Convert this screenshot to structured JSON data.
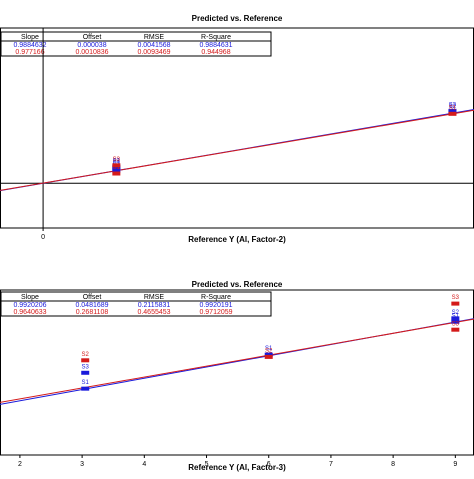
{
  "chart_data": [
    {
      "type": "scatter",
      "title": "Predicted vs. Reference",
      "xlabel": "Reference Y (Al, Factor-2)",
      "table": {
        "columns": [
          "Slope",
          "Offset",
          "RMSE",
          "R-Square"
        ],
        "rows": [
          {
            "color": "#1a1adb",
            "values": [
              0.9884632,
              3.8e-05,
              0.0041568,
              0.9884631
            ]
          },
          {
            "color": "#d41a1a",
            "values": [
              0.977166,
              0.0010836,
              0.0093469,
              0.944968
            ]
          }
        ]
      },
      "xlim": [
        -0.1,
        1.0
      ],
      "ylim": [
        -0.6,
        2.08
      ],
      "xticks": [
        0
      ],
      "origin_lines": true,
      "series": [
        {
          "color": "#1a1adb",
          "x": [
            0.17,
            0.17,
            0.17,
            0.95,
            0.95
          ],
          "values": [
            0.2,
            0.17,
            0.22,
            0.95,
            0.97
          ],
          "labels": [
            "S1",
            "S2",
            "S3",
            "S2",
            "S3"
          ]
        },
        {
          "color": "#d41a1a",
          "x": [
            0.17,
            0.17,
            0.95
          ],
          "values": [
            0.13,
            0.24,
            0.93
          ],
          "labels": [
            "S1",
            "S3",
            "S1"
          ]
        }
      ]
    },
    {
      "type": "scatter",
      "title": "Predicted vs. Reference",
      "xlabel": "Reference Y (Al, Factor-3)",
      "table": {
        "columns": [
          "Slope",
          "Offset",
          "RMSE",
          "R-Square"
        ],
        "rows": [
          {
            "color": "#1a1adb",
            "values": [
              0.9920206,
              0.0481689,
              0.2115831,
              0.9920191
            ]
          },
          {
            "color": "#d41a1a",
            "values": [
              0.9640633,
              0.2681108,
              0.4655453,
              0.9712059
            ]
          }
        ]
      },
      "xlim": [
        1.68,
        9.3
      ],
      "ylim": [
        -2.75,
        11.8
      ],
      "xticks": [
        2,
        3,
        4,
        5,
        6,
        7,
        8,
        9
      ],
      "origin_lines": false,
      "series": [
        {
          "color": "#1a1adb",
          "x": [
            3.05,
            3.05,
            6.0,
            9.0,
            9.0
          ],
          "values": [
            3.1,
            4.5,
            6.1,
            9.3,
            9.0
          ],
          "labels": [
            "S1",
            "S3",
            "S1",
            "S2",
            "S1"
          ]
        },
        {
          "color": "#d41a1a",
          "x": [
            3.05,
            6.0,
            9.0,
            9.0
          ],
          "values": [
            5.6,
            5.9,
            10.6,
            8.3
          ],
          "labels": [
            "S2",
            "S2",
            "S3",
            "S3"
          ]
        }
      ]
    }
  ]
}
